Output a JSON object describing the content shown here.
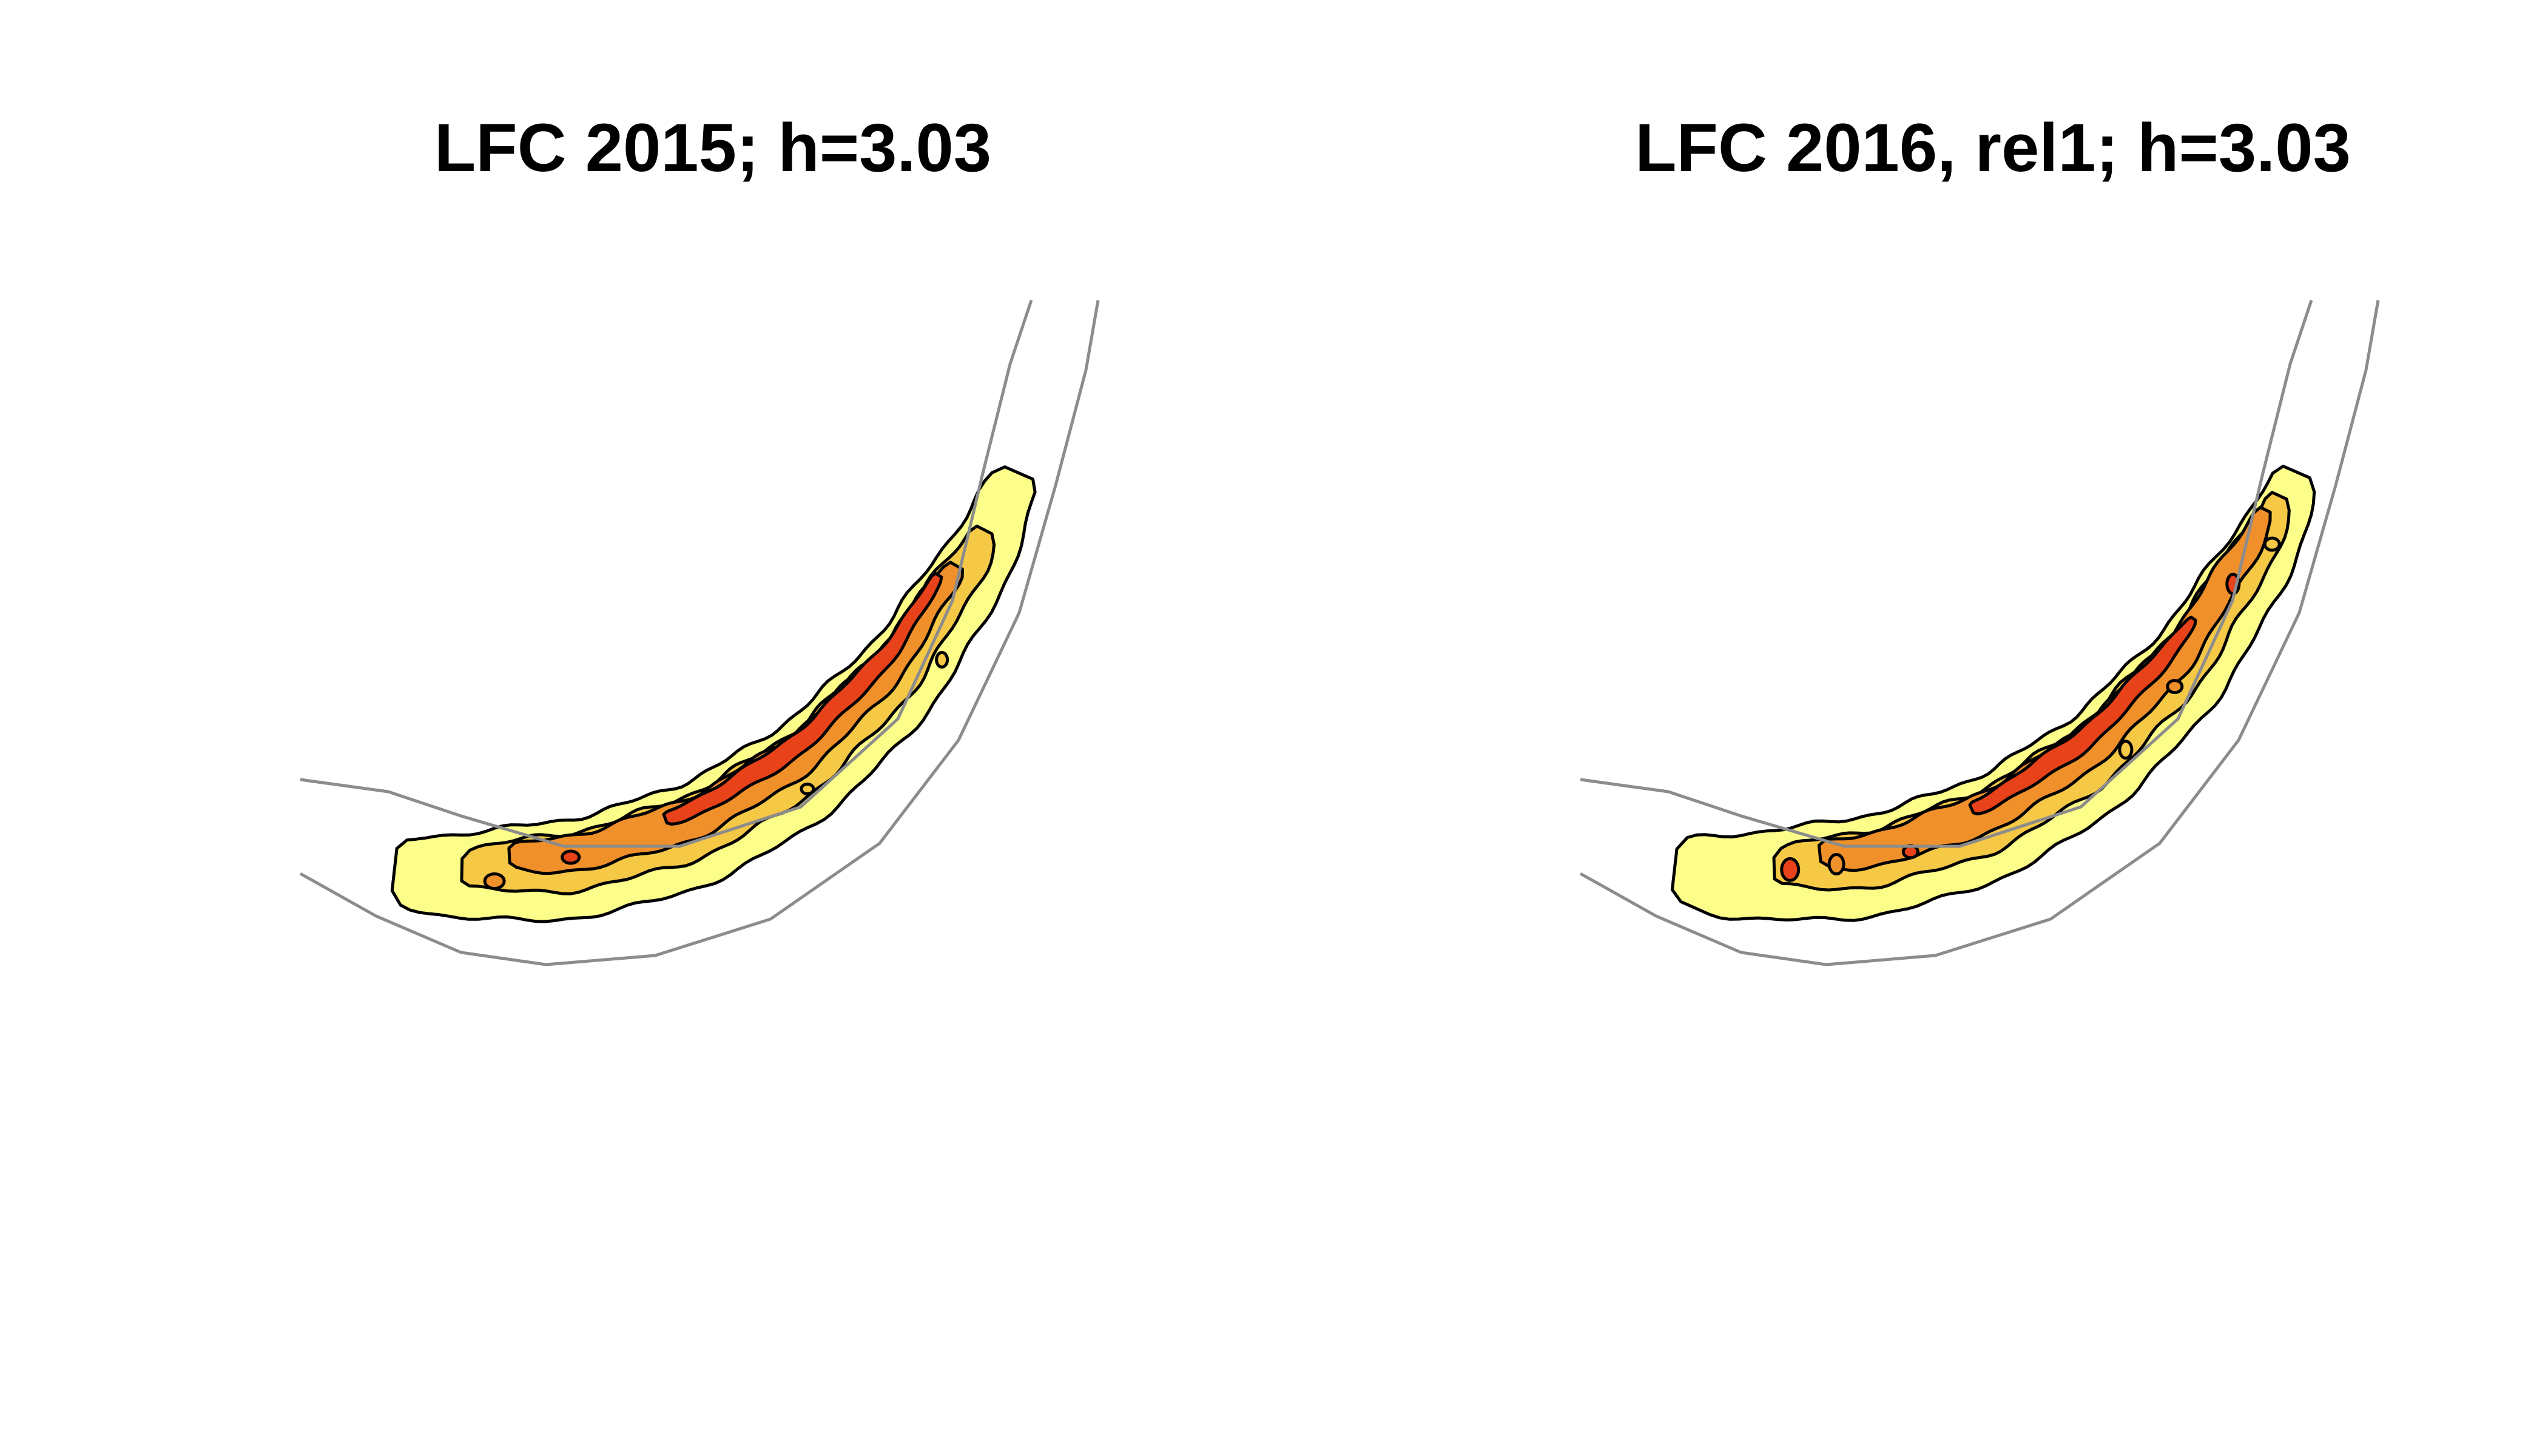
{
  "chart_data": [
    {
      "type": "heatmap",
      "subtype": "kernel density contour map",
      "title": "LFC 2015; h=3.03",
      "xlabel": "",
      "ylabel": "",
      "axes_visible": false,
      "grid": false,
      "legend": "none",
      "contour_levels": 4,
      "fill_colors": [
        "#fdfd8a",
        "#f5c846",
        "#f0902a",
        "#e8421a"
      ],
      "contour_color": "#000000",
      "boundary_color": "#8c8c8c"
    },
    {
      "type": "heatmap",
      "subtype": "kernel density contour map",
      "title": "LFC 2016, rel1; h=3.03",
      "xlabel": "",
      "ylabel": "",
      "axes_visible": false,
      "grid": false,
      "legend": "none",
      "contour_levels": 4,
      "fill_colors": [
        "#fdfd8a",
        "#f5c846",
        "#f0902a",
        "#e8421a"
      ],
      "contour_color": "#000000",
      "boundary_color": "#8c8c8c"
    }
  ]
}
